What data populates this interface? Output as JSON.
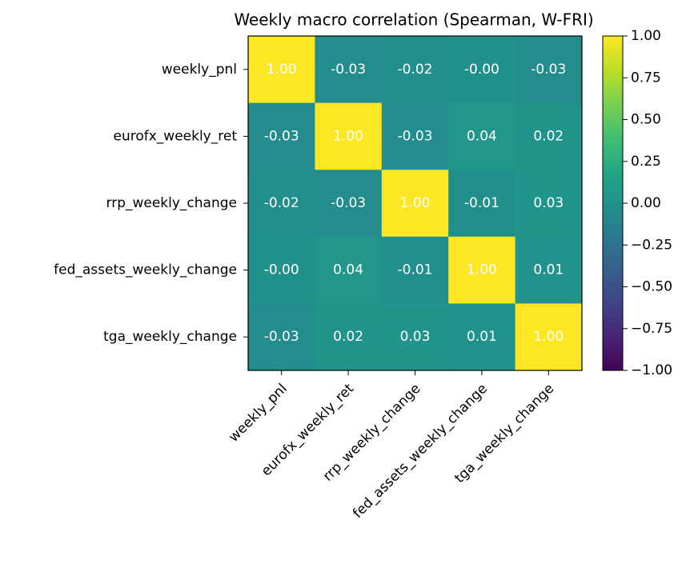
{
  "chart_data": {
    "type": "heatmap",
    "title": "Weekly macro correlation (Spearman, W-FRI)",
    "categories": [
      "weekly_pnl",
      "eurofx_weekly_ret",
      "rrp_weekly_change",
      "fed_assets_weekly_change",
      "tga_weekly_change"
    ],
    "values": [
      [
        1,
        -0.03,
        -0.02,
        -0.002,
        -0.03
      ],
      [
        -0.03,
        1,
        -0.03,
        0.04,
        0.02
      ],
      [
        -0.02,
        -0.03,
        1,
        -0.01,
        0.03
      ],
      [
        -0.002,
        0.04,
        -0.01,
        1,
        0.01
      ],
      [
        -0.03,
        0.02,
        0.03,
        0.01,
        1
      ]
    ],
    "value_labels": [
      [
        "1.00",
        "-0.03",
        "-0.02",
        "-0.00",
        "-0.03"
      ],
      [
        "-0.03",
        "1.00",
        "-0.03",
        "0.04",
        "0.02"
      ],
      [
        "-0.02",
        "-0.03",
        "1.00",
        "-0.01",
        "0.03"
      ],
      [
        "-0.00",
        "0.04",
        "-0.01",
        "1.00",
        "0.01"
      ],
      [
        "-0.03",
        "0.02",
        "0.03",
        "0.01",
        "1.00"
      ]
    ],
    "colormap": "viridis",
    "clim": [
      -1,
      1
    ],
    "cticks": [
      {
        "value": -1,
        "label": "−1.00"
      },
      {
        "value": -0.75,
        "label": "−0.75"
      },
      {
        "value": -0.5,
        "label": "−0.50"
      },
      {
        "value": -0.25,
        "label": "−0.25"
      },
      {
        "value": 0,
        "label": "0.00"
      },
      {
        "value": 0.25,
        "label": "0.25"
      },
      {
        "value": 0.5,
        "label": "0.50"
      },
      {
        "value": 0.75,
        "label": "0.75"
      },
      {
        "value": 1,
        "label": "1.00"
      }
    ]
  }
}
